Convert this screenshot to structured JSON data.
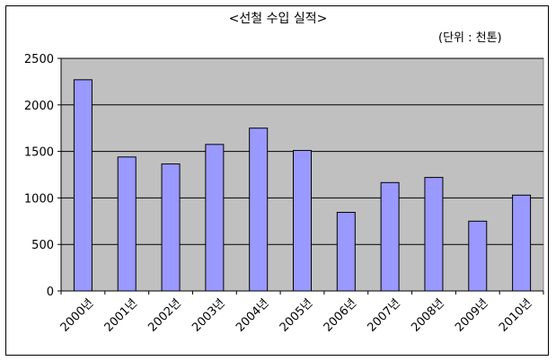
{
  "chart_data": {
    "type": "bar",
    "title": "<선철 수입 실적>",
    "unit_label": "(단위 : 천톤)",
    "categories": [
      "2000년",
      "2001년",
      "2002년",
      "2003년",
      "2004년",
      "2005년",
      "2006년",
      "2007년",
      "2008년",
      "2009년",
      "2010년"
    ],
    "values": [
      2270,
      1440,
      1365,
      1575,
      1750,
      1510,
      845,
      1165,
      1220,
      750,
      1030
    ],
    "ylim": [
      0,
      2500
    ],
    "yticks": [
      0,
      500,
      1000,
      1500,
      2000,
      2500
    ],
    "grid": true,
    "legend": "none",
    "colors": {
      "bar": "#9999ff",
      "bar_stroke": "#000000",
      "plot_bg": "#c0c0c0",
      "grid": "#000000"
    }
  }
}
